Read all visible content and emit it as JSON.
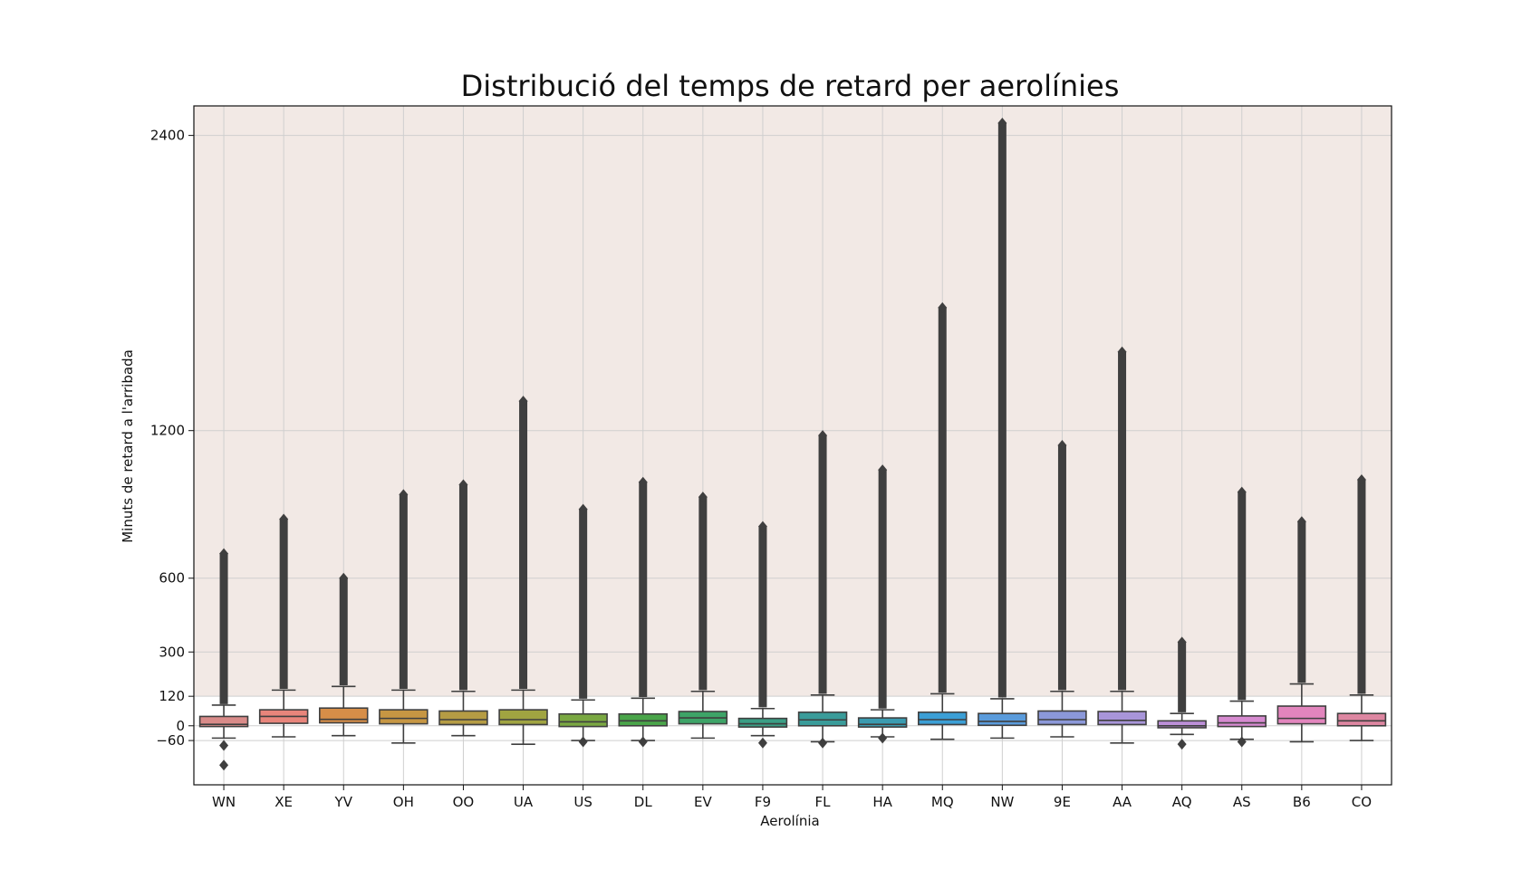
{
  "chart_data": {
    "type": "box",
    "title": "Distribució del temps de retard per aerolínies",
    "xlabel": "Aerolínia",
    "ylabel": "Minuts de retard a l'arribada",
    "ylim": [
      -240,
      2520
    ],
    "yticks": [
      -60,
      0,
      120,
      300,
      600,
      1200,
      2400
    ],
    "grid": true,
    "highlight_band": {
      "from": 120,
      "to": 2520,
      "color": "#f2e9e5"
    },
    "box_stroke_color": "#3f3f3f",
    "categories": [
      "WN",
      "XE",
      "YV",
      "OH",
      "OO",
      "UA",
      "US",
      "DL",
      "EV",
      "F9",
      "FL",
      "HA",
      "MQ",
      "NW",
      "9E",
      "AA",
      "AQ",
      "AS",
      "B6",
      "CO"
    ],
    "boxes": [
      {
        "name": "WN",
        "color": "#d98b89",
        "whisker_low": -50,
        "q1": -3,
        "median": 6,
        "q3": 38,
        "whisker_high": 84,
        "outliers_low": [
          -80,
          -160
        ],
        "outlier_span": [
          88,
          700
        ]
      },
      {
        "name": "XE",
        "color": "#e8857b",
        "whisker_low": -45,
        "q1": 10,
        "median": 38,
        "q3": 65,
        "whisker_high": 145,
        "outliers_low": [],
        "outlier_span": [
          150,
          840
        ]
      },
      {
        "name": "YV",
        "color": "#d68e48",
        "whisker_low": -40,
        "q1": 12,
        "median": 26,
        "q3": 72,
        "whisker_high": 160,
        "outliers_low": [],
        "outlier_span": [
          165,
          600
        ]
      },
      {
        "name": "OH",
        "color": "#c69643",
        "whisker_low": -70,
        "q1": 8,
        "median": 30,
        "q3": 65,
        "whisker_high": 145,
        "outliers_low": [],
        "outlier_span": [
          150,
          940
        ]
      },
      {
        "name": "OO",
        "color": "#b59c44",
        "whisker_low": -40,
        "q1": 5,
        "median": 25,
        "q3": 60,
        "whisker_high": 140,
        "outliers_low": [],
        "outlier_span": [
          145,
          980
        ]
      },
      {
        "name": "UA",
        "color": "#a0a441",
        "whisker_low": -75,
        "q1": 5,
        "median": 25,
        "q3": 65,
        "whisker_high": 145,
        "outliers_low": [],
        "outlier_span": [
          150,
          1320
        ]
      },
      {
        "name": "US",
        "color": "#7aa842",
        "whisker_low": -60,
        "q1": -3,
        "median": 16,
        "q3": 48,
        "whisker_high": 105,
        "outliers_low": [
          -65
        ],
        "outlier_span": [
          110,
          880
        ]
      },
      {
        "name": "DL",
        "color": "#4aa54a",
        "whisker_low": -60,
        "q1": 0,
        "median": 20,
        "q3": 48,
        "whisker_high": 112,
        "outliers_low": [
          -65
        ],
        "outlier_span": [
          117,
          990
        ]
      },
      {
        "name": "EV",
        "color": "#3da467",
        "whisker_low": -50,
        "q1": 8,
        "median": 32,
        "q3": 58,
        "whisker_high": 140,
        "outliers_low": [],
        "outlier_span": [
          145,
          930
        ]
      },
      {
        "name": "F9",
        "color": "#3b9e85",
        "whisker_low": -40,
        "q1": -5,
        "median": 8,
        "q3": 30,
        "whisker_high": 70,
        "outliers_low": [
          -70
        ],
        "outlier_span": [
          75,
          810
        ]
      },
      {
        "name": "FL",
        "color": "#3a9c9a",
        "whisker_low": -65,
        "q1": 0,
        "median": 24,
        "q3": 55,
        "whisker_high": 125,
        "outliers_low": [
          -70
        ],
        "outlier_span": [
          130,
          1180
        ]
      },
      {
        "name": "HA",
        "color": "#3a9bb0",
        "whisker_low": -45,
        "q1": -5,
        "median": 6,
        "q3": 32,
        "whisker_high": 65,
        "outliers_low": [
          -50
        ],
        "outlier_span": [
          70,
          1040
        ]
      },
      {
        "name": "MQ",
        "color": "#3b9fd6",
        "whisker_low": -55,
        "q1": 5,
        "median": 25,
        "q3": 55,
        "whisker_high": 130,
        "outliers_low": [],
        "outlier_span": [
          135,
          1700
        ]
      },
      {
        "name": "NW",
        "color": "#5a9bdb",
        "whisker_low": -50,
        "q1": 2,
        "median": 18,
        "q3": 50,
        "whisker_high": 110,
        "outliers_low": [],
        "outlier_span": [
          115,
          2450
        ]
      },
      {
        "name": "9E",
        "color": "#8b98d9",
        "whisker_low": -45,
        "q1": 5,
        "median": 25,
        "q3": 60,
        "whisker_high": 140,
        "outliers_low": [],
        "outlier_span": [
          145,
          1140
        ]
      },
      {
        "name": "AA",
        "color": "#a895d9",
        "whisker_low": -70,
        "q1": 5,
        "median": 22,
        "q3": 58,
        "whisker_high": 140,
        "outliers_low": [],
        "outlier_span": [
          145,
          1520
        ]
      },
      {
        "name": "AQ",
        "color": "#bc8fd8",
        "whisker_low": -35,
        "q1": -8,
        "median": 0,
        "q3": 20,
        "whisker_high": 50,
        "outliers_low": [
          -75
        ],
        "outlier_span": [
          55,
          340
        ]
      },
      {
        "name": "AS",
        "color": "#d68ad0",
        "whisker_low": -55,
        "q1": -3,
        "median": 12,
        "q3": 40,
        "whisker_high": 100,
        "outliers_low": [
          -65
        ],
        "outlier_span": [
          105,
          950
        ]
      },
      {
        "name": "B6",
        "color": "#e285bd",
        "whisker_low": -65,
        "q1": 8,
        "median": 30,
        "q3": 80,
        "whisker_high": 170,
        "outliers_low": [],
        "outlier_span": [
          175,
          830
        ]
      },
      {
        "name": "CO",
        "color": "#dd86a1",
        "whisker_low": -60,
        "q1": 0,
        "median": 20,
        "q3": 50,
        "whisker_high": 125,
        "outliers_low": [],
        "outlier_span": [
          130,
          1000
        ]
      }
    ]
  }
}
